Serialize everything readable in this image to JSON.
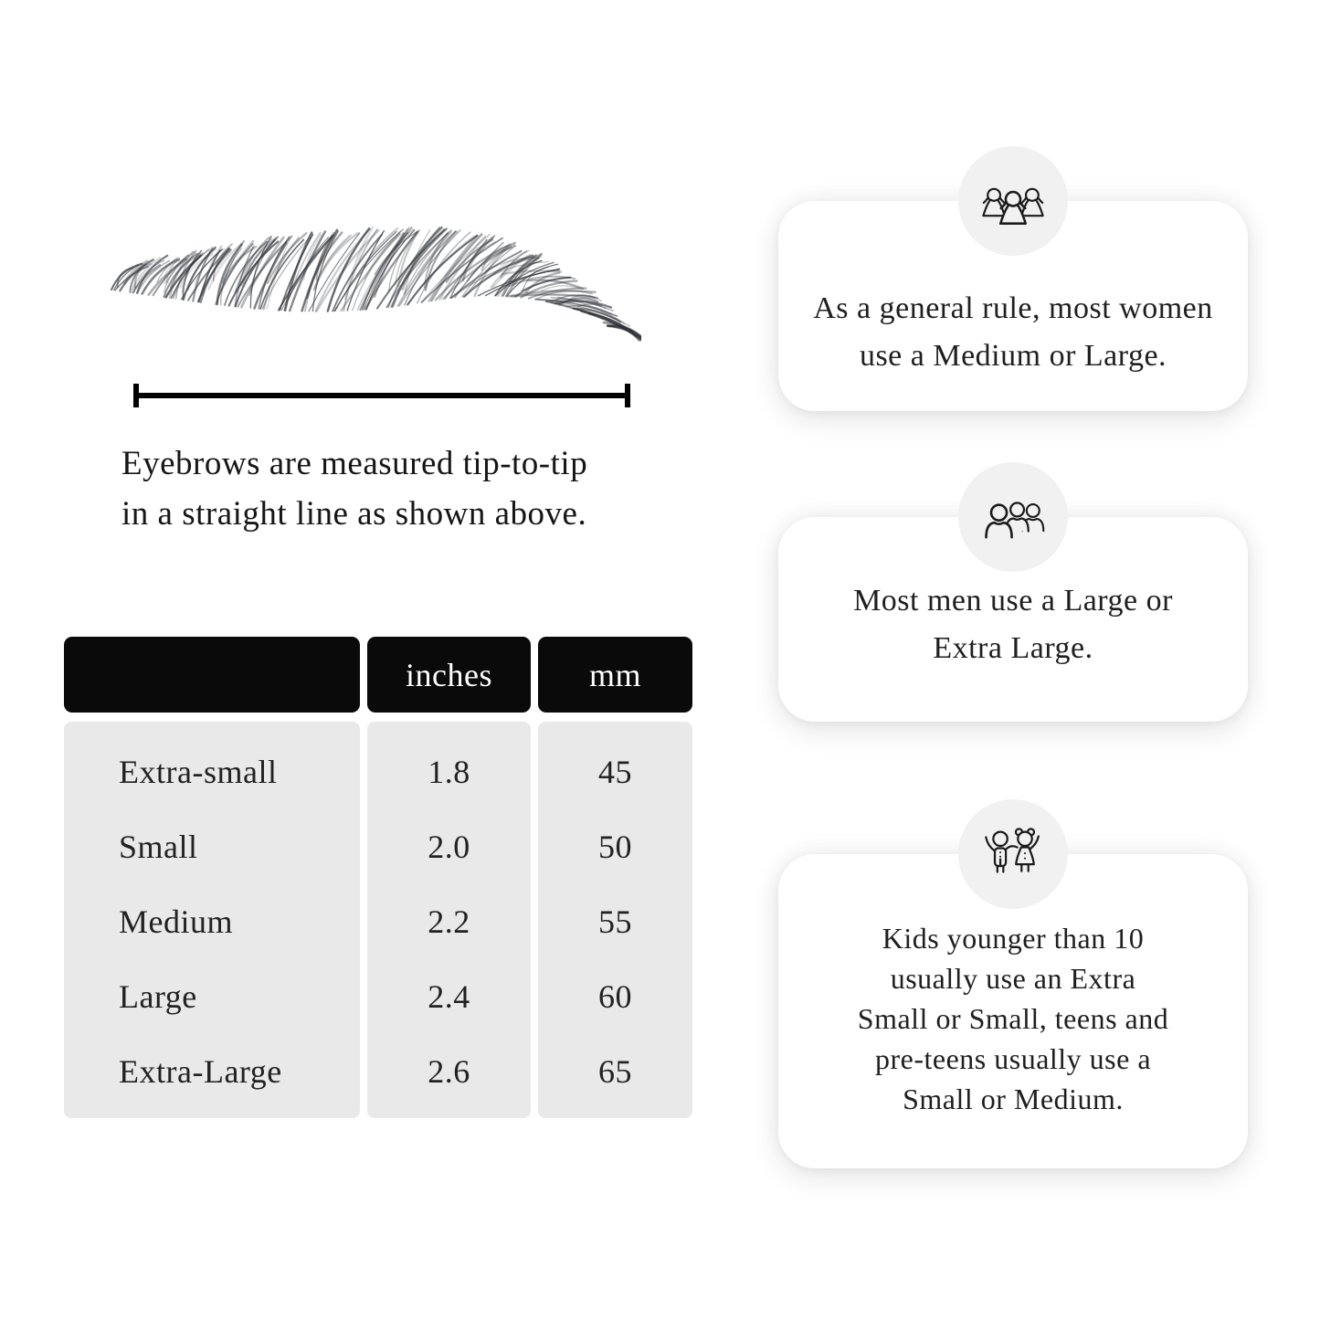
{
  "measure_diagram": {
    "illustration": "eyebrow-sketch",
    "caption_lines": [
      "Eyebrows are measured tip-to-tip",
      "in a straight line as shown above."
    ]
  },
  "size_table": {
    "col_headers": [
      "",
      "inches",
      "mm"
    ],
    "rows": [
      {
        "label": "Extra-small",
        "inches": "1.8",
        "mm": "45"
      },
      {
        "label": "Small",
        "inches": "2.0",
        "mm": "50"
      },
      {
        "label": "Medium",
        "inches": "2.2",
        "mm": "55"
      },
      {
        "label": "Large",
        "inches": "2.4",
        "mm": "60"
      },
      {
        "label": "Extra-Large",
        "inches": "2.6",
        "mm": "65"
      }
    ]
  },
  "cards": [
    {
      "icon": "women-group-icon",
      "lines": [
        "As a general rule, most women",
        "use a Medium or Large."
      ]
    },
    {
      "icon": "men-group-icon",
      "lines": [
        "Most men use a Large or",
        "Extra Large."
      ]
    },
    {
      "icon": "kids-icon",
      "lines": [
        "Kids younger than 10",
        "usually use an Extra",
        "Small or Small, teens and",
        "pre-teens usually use a",
        "Small or Medium."
      ]
    }
  ],
  "colors": {
    "page_bg": "#ffffff",
    "ink": "#1c1c1c",
    "header_bg": "#0a0a0a",
    "header_text": "#ffffff",
    "body_bg": "#e9e9e9",
    "card_bg": "#ffffff",
    "circle_bg": "#f1f1f1"
  }
}
